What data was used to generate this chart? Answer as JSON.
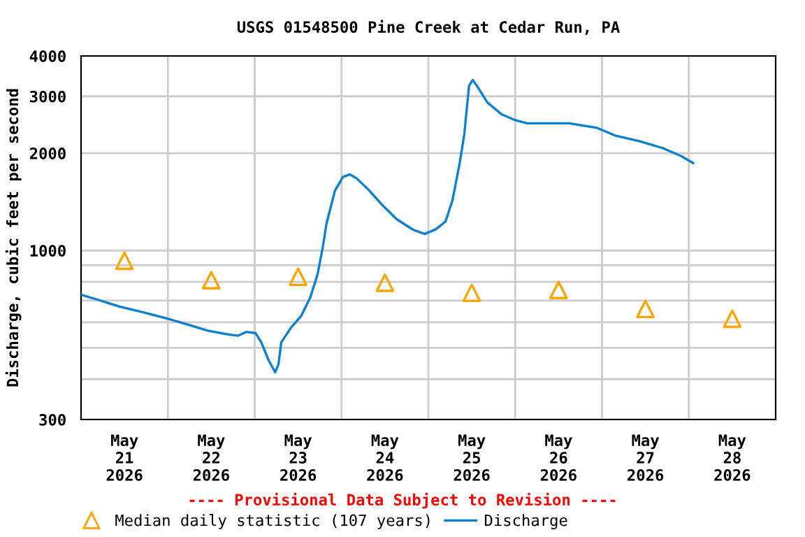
{
  "chart_data": {
    "type": "line",
    "title": "USGS 01548500 Pine Creek at Cedar Run, PA",
    "ylabel": "Discharge, cubic feet per second",
    "annotations": [
      "---- Provisional Data Subject to Revision ----"
    ],
    "log": "y",
    "grid": true,
    "legend": "bottom",
    "xlim": [
      "2026-05-21T00:00",
      "2026-05-29T00:00"
    ],
    "xticks": [
      {
        "value": "2026-05-21T12:00",
        "label": "May\n21\n2026"
      },
      {
        "value": "2026-05-22T12:00",
        "label": "May\n22\n2026"
      },
      {
        "value": "2026-05-23T12:00",
        "label": "May\n23\n2026"
      },
      {
        "value": "2026-05-24T12:00",
        "label": "May\n24\n2026"
      },
      {
        "value": "2026-05-25T12:00",
        "label": "May\n25\n2026"
      },
      {
        "value": "2026-05-26T12:00",
        "label": "May\n26\n2026"
      },
      {
        "value": "2026-05-27T12:00",
        "label": "May\n27\n2026"
      },
      {
        "value": "2026-05-28T12:00",
        "label": "May\n28\n2026"
      },
      {
        "value": "2026-05-22T00:00",
        "label": null
      },
      {
        "value": "2026-05-23T00:00",
        "label": null
      },
      {
        "value": "2026-05-24T00:00",
        "label": null
      },
      {
        "value": "2026-05-25T00:00",
        "label": null
      },
      {
        "value": "2026-05-26T00:00",
        "label": null
      },
      {
        "value": "2026-05-27T00:00",
        "label": null
      },
      {
        "value": "2026-05-28T00:00",
        "label": null
      }
    ],
    "ylim": [
      300,
      4000
    ],
    "yticks": [
      300,
      {
        "value": 400,
        "label": null
      },
      {
        "value": 500,
        "label": null
      },
      {
        "value": 600,
        "label": null
      },
      {
        "value": 700,
        "label": null
      },
      {
        "value": 800,
        "label": null
      },
      {
        "value": 900,
        "label": null
      },
      1000,
      2000,
      3000,
      4000
    ],
    "series": [
      {
        "name": "Median daily statistic (107 years)",
        "type": "scatter",
        "marker": "triangle",
        "color": "#ffa500",
        "x": [
          "2026-05-21T12:00",
          "2026-05-22T12:00",
          "2026-05-23T12:00",
          "2026-05-24T12:00",
          "2026-05-25T12:00",
          "2026-05-26T12:00",
          "2026-05-27T12:00",
          "2026-05-28T12:00"
        ],
        "values": [
          930,
          810,
          830,
          795,
          740,
          755,
          660,
          615
        ]
      },
      {
        "name": "Discharge",
        "marker": "none",
        "line_style": "solid",
        "color": "#0b7fd0",
        "x": [
          "2026-05-21T00:00",
          "2026-05-21T04:30",
          "2026-05-21T10:45",
          "2026-05-21T17:00",
          "2026-05-22T00:00",
          "2026-05-22T04:30",
          "2026-05-22T11:00",
          "2026-05-22T16:45",
          "2026-05-22T19:20",
          "2026-05-22T21:40",
          "2026-05-23T00:15",
          "2026-05-23T01:50",
          "2026-05-23T03:45",
          "2026-05-23T05:40",
          "2026-05-23T06:35",
          "2026-05-23T07:20",
          "2026-05-23T10:10",
          "2026-05-23T12:45",
          "2026-05-23T15:20",
          "2026-05-23T17:20",
          "2026-05-23T18:50",
          "2026-05-23T19:50",
          "2026-05-23T22:10",
          "2026-05-24T00:25",
          "2026-05-24T02:20",
          "2026-05-24T04:15",
          "2026-05-24T07:30",
          "2026-05-24T11:20",
          "2026-05-24T15:15",
          "2026-05-24T19:45",
          "2026-05-24T23:00",
          "2026-05-25T02:10",
          "2026-05-25T04:45",
          "2026-05-25T06:40",
          "2026-05-25T08:40",
          "2026-05-25T09:55",
          "2026-05-25T11:15",
          "2026-05-25T12:15",
          "2026-05-25T13:50",
          "2026-05-25T16:20",
          "2026-05-25T20:15",
          "2026-05-26T00:05",
          "2026-05-26T03:20",
          "2026-05-26T15:00",
          "2026-05-26T22:40",
          "2026-05-27T03:50",
          "2026-05-27T10:20",
          "2026-05-27T16:45",
          "2026-05-27T21:55",
          "2026-05-28T01:10"
        ],
        "values": [
          730,
          705,
          670,
          645,
          615,
          595,
          565,
          550,
          545,
          560,
          555,
          520,
          460,
          420,
          445,
          520,
          580,
          625,
          715,
          840,
          1025,
          1210,
          1530,
          1690,
          1720,
          1670,
          1540,
          1380,
          1250,
          1160,
          1125,
          1165,
          1230,
          1430,
          1865,
          2280,
          3230,
          3370,
          3180,
          2870,
          2640,
          2530,
          2475,
          2475,
          2395,
          2265,
          2180,
          2075,
          1960,
          1865
        ]
      }
    ]
  }
}
